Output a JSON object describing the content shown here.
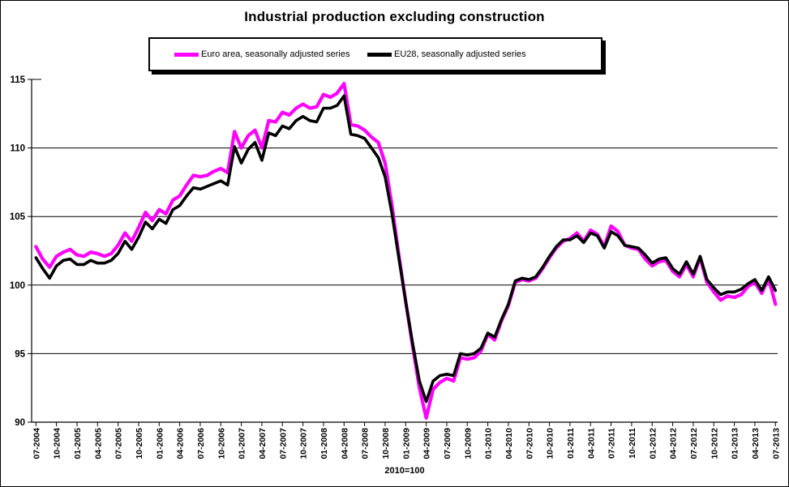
{
  "title": "Industrial production excluding construction",
  "axis_note": "2010=100",
  "legend": {
    "items": [
      {
        "label": "Euro area, seasonally adjusted series",
        "color": "#FF00FF"
      },
      {
        "label": "EU28, seasonally adjusted series",
        "color": "#000000"
      }
    ]
  },
  "chart_data": {
    "type": "line",
    "title": "Industrial production excluding construction",
    "xlabel": "2010=100",
    "ylabel": "",
    "ylim": [
      90,
      115
    ],
    "y_ticks": [
      90,
      95,
      100,
      105,
      110,
      115
    ],
    "grid": "horizontal",
    "legend_position": "top",
    "x_start": "07-2004",
    "x_end": "07-2013",
    "x_frequency": "monthly",
    "x_point_count": 109,
    "x_tick_labels": [
      "07-2004",
      "10-2004",
      "01-2005",
      "04-2005",
      "07-2005",
      "10-2005",
      "01-2006",
      "04-2006",
      "07-2006",
      "10-2006",
      "01-2007",
      "04-2007",
      "07-2007",
      "10-2007",
      "01-2008",
      "04-2008",
      "07-2008",
      "10-2008",
      "01-2009",
      "04-2009",
      "07-2009",
      "10-2009",
      "01-2010",
      "04-2010",
      "07-2010",
      "10-2010",
      "01-2011",
      "04-2011",
      "07-2011",
      "10-2011",
      "01-2012",
      "04-2012",
      "07-2012",
      "10-2012",
      "01-2013",
      "04-2013",
      "07-2013"
    ],
    "x_tick_every_n_months": 3,
    "series": [
      {
        "name": "Euro area, seasonally adjusted series",
        "color": "#FF00FF",
        "line_width": 4.2,
        "values": [
          102.8,
          101.9,
          101.3,
          102.1,
          102.4,
          102.6,
          102.2,
          102.1,
          102.4,
          102.3,
          102.1,
          102.3,
          102.9,
          103.8,
          103.2,
          104.2,
          105.3,
          104.7,
          105.5,
          105.2,
          106.2,
          106.5,
          107.3,
          108.0,
          107.9,
          108.0,
          108.3,
          108.5,
          108.2,
          111.2,
          110.0,
          110.9,
          111.3,
          110.0,
          112.0,
          111.9,
          112.6,
          112.4,
          112.9,
          113.2,
          112.9,
          113.0,
          113.9,
          113.7,
          114.0,
          114.7,
          111.7,
          111.6,
          111.3,
          110.8,
          110.4,
          108.9,
          105.8,
          102.2,
          98.8,
          95.6,
          92.5,
          90.3,
          92.4,
          92.9,
          93.2,
          93.0,
          94.7,
          94.6,
          94.7,
          95.2,
          96.4,
          96.0,
          97.4,
          98.5,
          100.2,
          100.4,
          100.3,
          100.5,
          101.2,
          102.0,
          102.7,
          103.2,
          103.4,
          103.8,
          103.2,
          104.0,
          103.7,
          102.8,
          104.3,
          103.9,
          102.9,
          102.7,
          102.6,
          101.9,
          101.4,
          101.7,
          101.8,
          101.0,
          100.6,
          101.5,
          100.6,
          102.0,
          100.2,
          99.5,
          98.9,
          99.2,
          99.1,
          99.3,
          99.9,
          100.2,
          99.4,
          100.5,
          98.6
        ]
      },
      {
        "name": "EU28, seasonally adjusted series",
        "color": "#000000",
        "line_width": 3.6,
        "values": [
          102.0,
          101.2,
          100.5,
          101.4,
          101.8,
          101.9,
          101.5,
          101.5,
          101.8,
          101.6,
          101.6,
          101.8,
          102.3,
          103.2,
          102.6,
          103.5,
          104.6,
          104.1,
          104.8,
          104.5,
          105.5,
          105.8,
          106.5,
          107.1,
          107.0,
          107.2,
          107.4,
          107.6,
          107.3,
          110.1,
          108.9,
          109.9,
          110.4,
          109.1,
          111.1,
          110.9,
          111.6,
          111.4,
          112.0,
          112.3,
          112.0,
          111.9,
          112.9,
          112.9,
          113.1,
          113.8,
          111.0,
          110.9,
          110.7,
          110.0,
          109.3,
          107.9,
          105.2,
          102.0,
          98.8,
          95.8,
          93.0,
          91.5,
          93.0,
          93.4,
          93.5,
          93.4,
          95.0,
          94.9,
          95.0,
          95.4,
          96.5,
          96.2,
          97.5,
          98.6,
          100.3,
          100.5,
          100.4,
          100.6,
          101.3,
          102.1,
          102.8,
          103.3,
          103.3,
          103.6,
          103.1,
          103.8,
          103.6,
          102.7,
          103.9,
          103.6,
          102.9,
          102.8,
          102.7,
          102.2,
          101.6,
          101.9,
          102.0,
          101.2,
          100.8,
          101.7,
          100.8,
          102.1,
          100.4,
          99.8,
          99.3,
          99.5,
          99.5,
          99.7,
          100.1,
          100.4,
          99.6,
          100.6,
          99.6
        ]
      }
    ]
  }
}
